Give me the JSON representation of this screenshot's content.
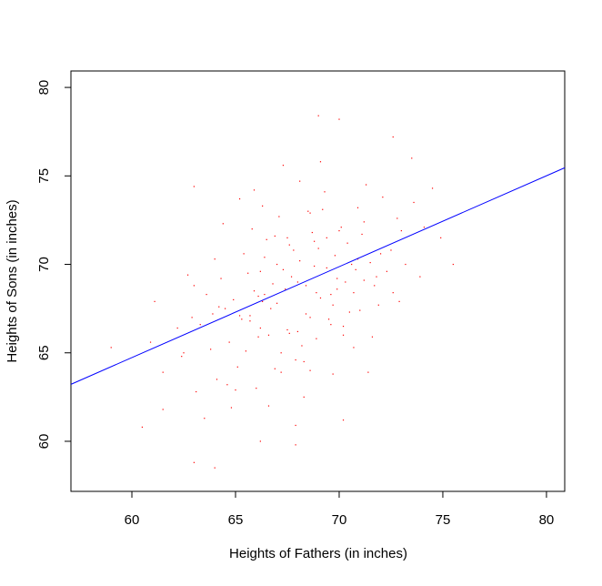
{
  "chart_data": {
    "type": "scatter",
    "xlabel": "Heights of Fathers (in inches)",
    "ylabel": "Heights of Sons (in inches)",
    "xlim": [
      57.06,
      80.88
    ],
    "ylim": [
      57.17,
      80.93
    ],
    "xticks": [
      60,
      65,
      70,
      75,
      80
    ],
    "yticks": [
      60,
      65,
      70,
      75,
      80
    ],
    "series": [
      {
        "type": "scatter",
        "color": "#ff0000",
        "x": [
          65.2,
          66.8,
          68.1,
          69.4,
          70.3,
          67.5,
          64.9,
          63.8,
          71.2,
          72.5,
          66.1,
          68.9,
          67.3,
          65.7,
          69.8,
          70.9,
          62.4,
          64.1,
          73.0,
          68.4,
          66.4,
          67.9,
          69.1,
          70.6,
          71.8,
          65.0,
          63.3,
          68.7,
          67.0,
          66.2,
          69.5,
          70.1,
          64.5,
          72.1,
          68.2,
          65.9,
          67.6,
          71.0,
          62.9,
          69.9,
          68.5,
          66.6,
          64.3,
          70.7,
          67.2,
          69.3,
          65.4,
          71.5,
          63.6,
          68.0,
          66.9,
          70.2,
          72.8,
          67.8,
          65.1,
          69.7,
          68.8,
          64.7,
          71.3,
          66.3,
          61.5,
          62.2,
          74.1,
          73.6,
          67.4,
          68.6,
          70.4,
          65.6,
          66.0,
          69.0,
          71.7,
          64.0,
          67.1,
          68.3,
          70.8,
          65.3,
          69.6,
          66.5,
          72.3,
          63.1,
          67.7,
          68.9,
          66.7,
          69.2,
          65.8,
          70.5,
          64.6,
          71.1,
          67.9,
          68.1,
          66.1,
          69.4,
          63.9,
          72.0,
          65.5,
          70.0,
          68.4,
          66.9,
          71.9,
          67.3,
          62.7,
          63.5,
          64.8,
          65.9,
          66.6,
          67.6,
          68.6,
          69.7,
          70.7,
          71.4,
          72.6,
          73.2,
          74.5,
          61.1,
          60.9,
          67.0,
          68.0,
          69.1,
          66.3,
          65.2,
          70.2,
          69.6,
          68.3,
          67.5,
          66.2,
          64.2,
          63.0,
          71.6,
          72.9,
          68.8,
          70.9,
          69.9,
          67.2,
          65.7,
          64.4,
          66.4,
          68.6,
          71.2,
          73.9,
          62.5,
          63.0,
          69.0,
          70.0,
          63.0,
          64.0,
          59.0,
          60.5,
          75.5,
          72.6,
          74.9,
          73.5,
          61.5,
          67.9,
          66.2,
          70.2
        ],
        "y": [
          67.1,
          68.9,
          70.2,
          71.5,
          69.0,
          66.3,
          68.0,
          65.2,
          72.4,
          70.8,
          65.9,
          68.4,
          69.7,
          66.8,
          70.5,
          73.2,
          64.8,
          63.5,
          71.9,
          67.2,
          70.4,
          64.6,
          68.1,
          70.0,
          69.3,
          62.9,
          66.6,
          71.8,
          67.8,
          69.6,
          66.9,
          72.1,
          67.5,
          73.8,
          65.4,
          68.5,
          71.1,
          67.4,
          67.0,
          69.2,
          73.0,
          66.0,
          69.2,
          68.4,
          63.9,
          74.1,
          70.6,
          70.1,
          68.3,
          66.2,
          71.6,
          66.5,
          72.6,
          70.8,
          64.2,
          67.7,
          69.9,
          65.6,
          74.5,
          67.9,
          63.9,
          66.4,
          72.1,
          73.5,
          68.6,
          67.0,
          71.2,
          69.5,
          63.0,
          70.9,
          68.8,
          70.3,
          72.7,
          64.5,
          69.7,
          66.9,
          68.3,
          71.4,
          69.6,
          62.8,
          69.3,
          65.8,
          67.5,
          73.1,
          72.0,
          67.3,
          63.2,
          71.7,
          60.9,
          74.7,
          68.2,
          69.8,
          67.2,
          70.6,
          65.1,
          71.9,
          68.8,
          64.1,
          67.7,
          75.6,
          69.4,
          61.3,
          61.9,
          74.2,
          62.0,
          66.1,
          72.9,
          63.8,
          65.3,
          63.9,
          68.4,
          70.0,
          74.3,
          67.9,
          65.6,
          70.0,
          69.0,
          75.8,
          73.3,
          73.7,
          66.0,
          66.6,
          62.5,
          71.5,
          66.4,
          67.6,
          68.8,
          65.9,
          67.9,
          71.3,
          70.3,
          68.6,
          65.0,
          67.1,
          72.3,
          68.3,
          64.0,
          69.1,
          69.3,
          65.0,
          74.4,
          78.4,
          78.2,
          58.8,
          58.5,
          65.3,
          60.8,
          70.0,
          77.2,
          71.5,
          76.0,
          61.8,
          59.8,
          60.0,
          61.2
        ]
      },
      {
        "type": "line",
        "color": "#0000ff",
        "x": [
          57.06,
          80.88
        ],
        "y": [
          63.22,
          75.46
        ]
      }
    ]
  }
}
